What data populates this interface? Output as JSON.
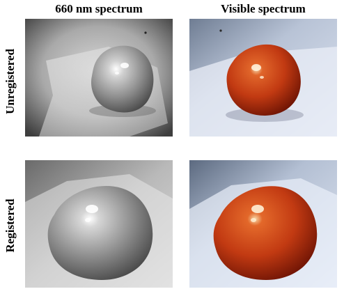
{
  "columns": {
    "left": "660 nm spectrum",
    "right": "Visible spectrum"
  },
  "rows": {
    "top": "Unregistered",
    "bottom": "Registered"
  },
  "colors": {
    "visible_apple": "#c23a12",
    "visible_apple_dark": "#7a1505",
    "gray_apple": "#9a9a9a",
    "paper_blue": "#dfe6f2"
  }
}
